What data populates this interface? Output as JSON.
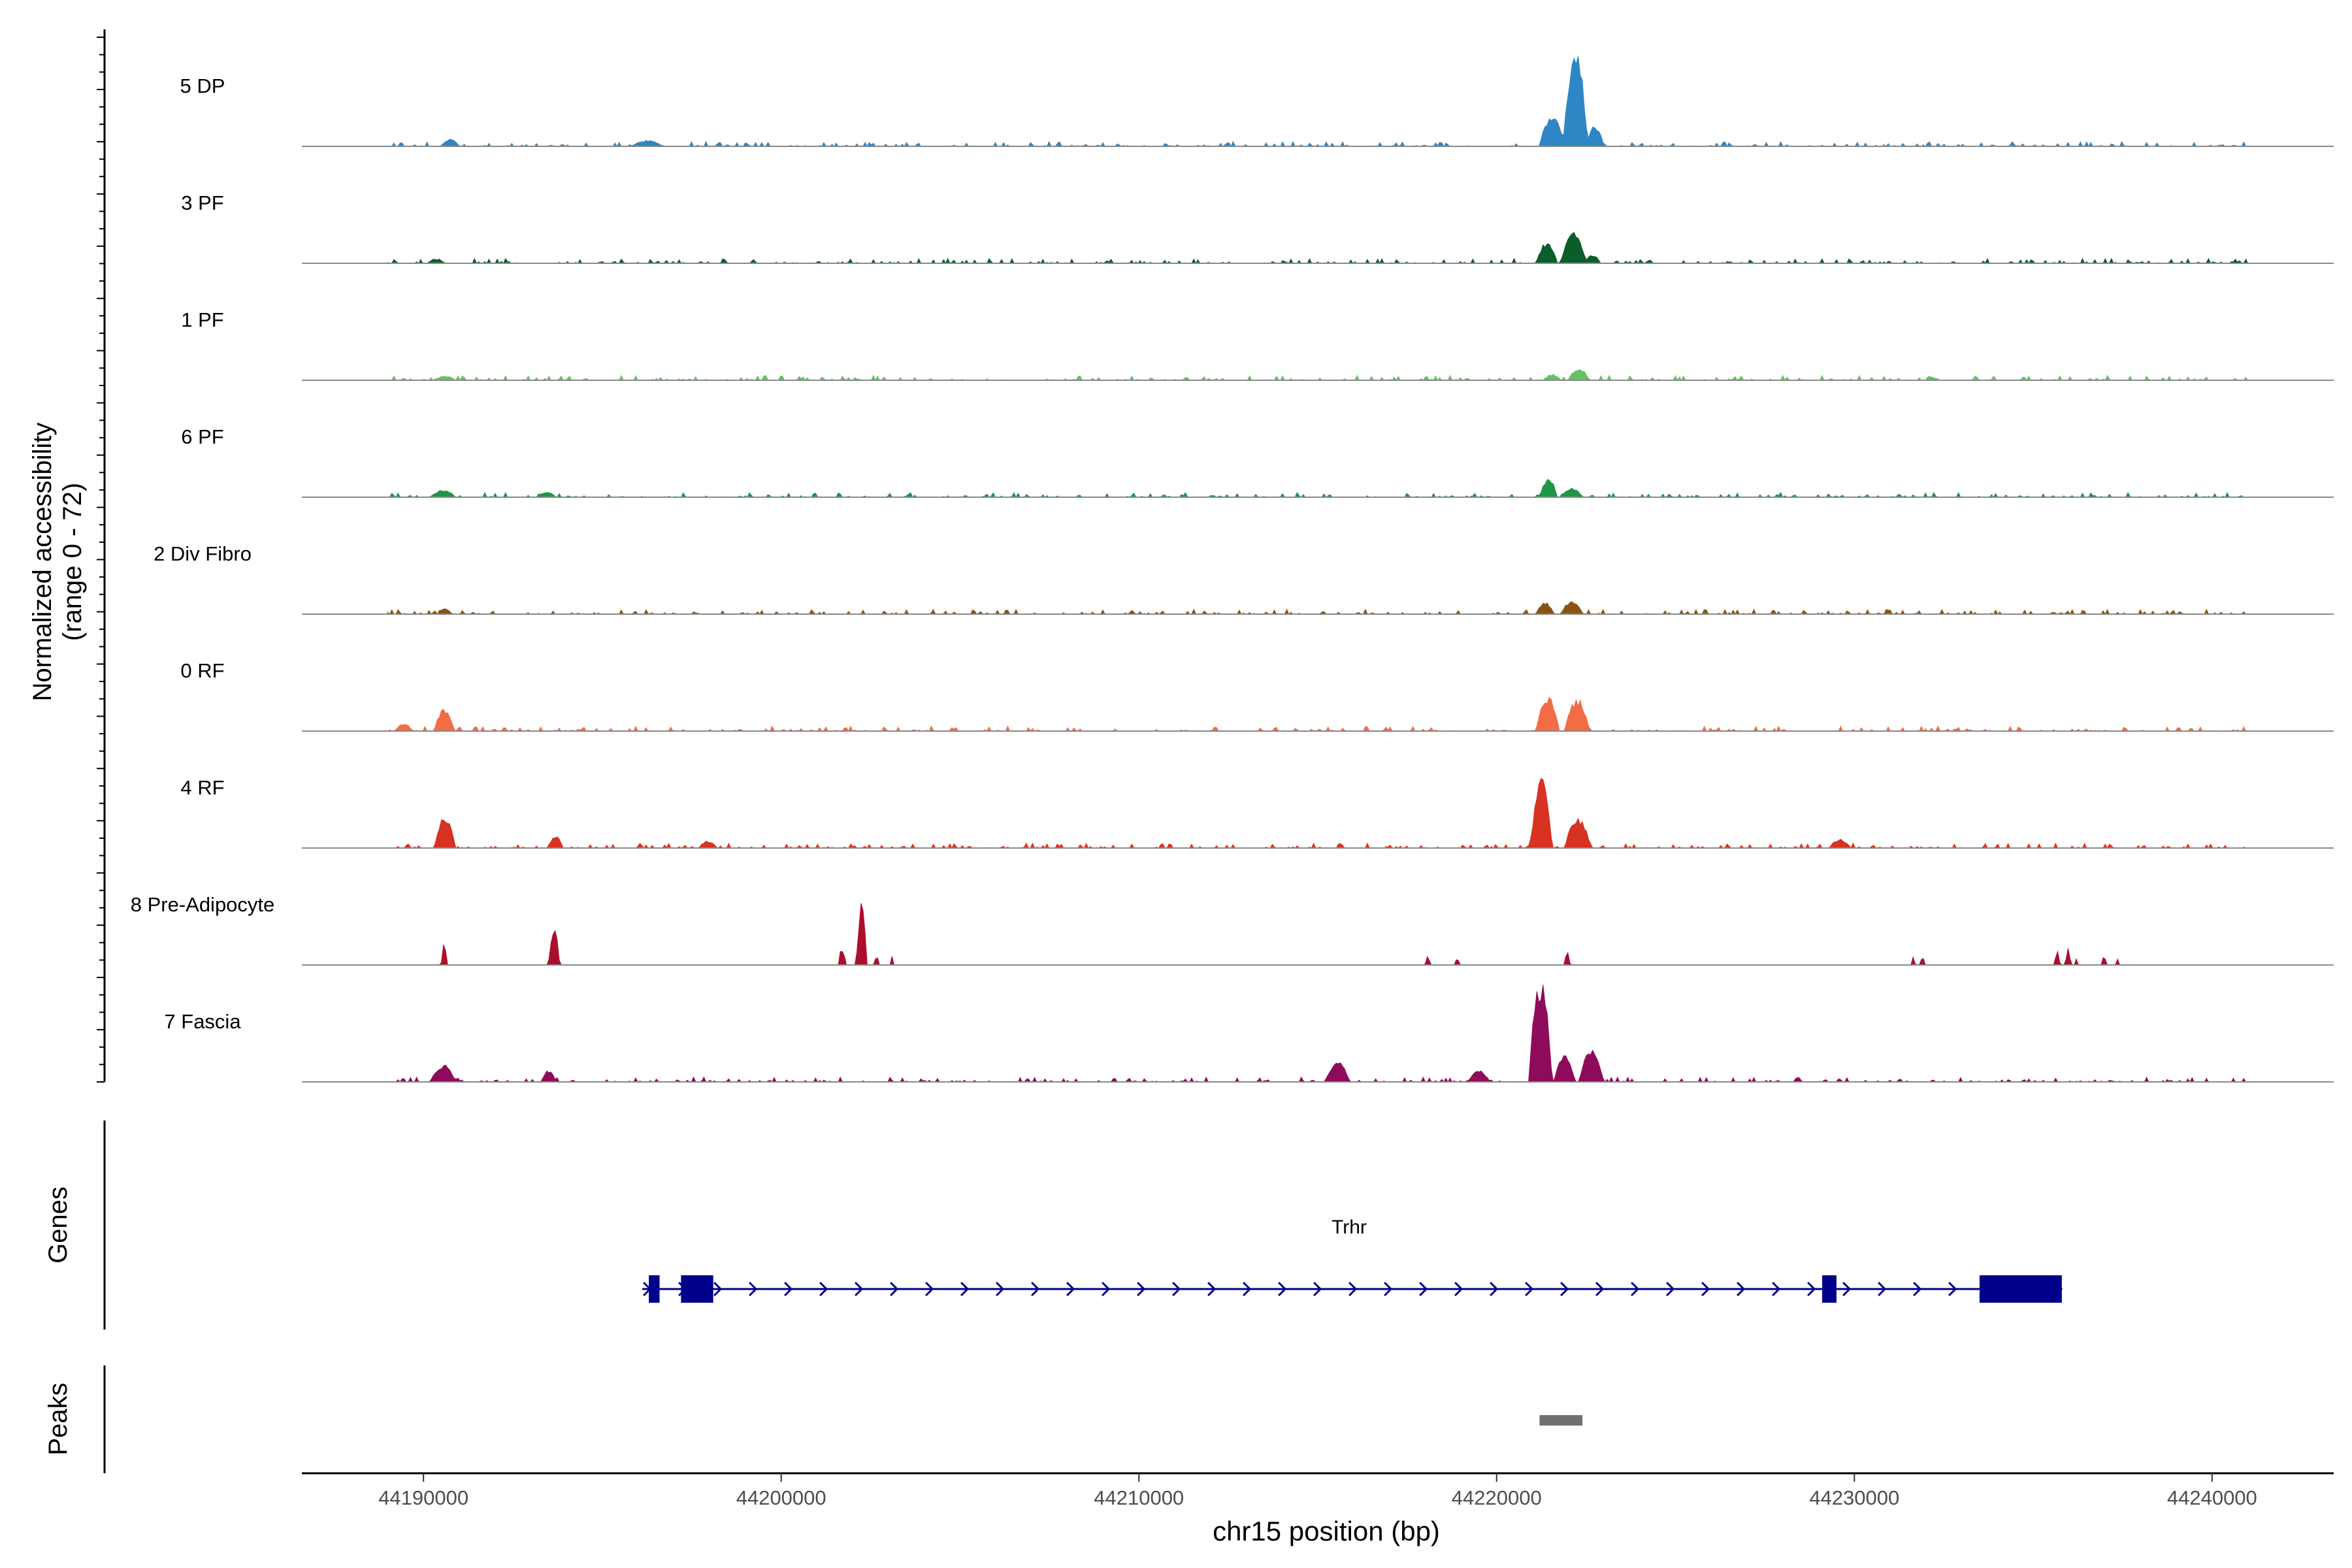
{
  "chart_data": {
    "type": "area",
    "title": "",
    "coverage": {
      "ylabel_line1": "Normalized accessibility",
      "ylabel_line2": "(range 0 - 72)",
      "yrange": [
        0,
        72
      ],
      "tracks": [
        {
          "name": "5 DP",
          "color": "#2F86C4",
          "peaks": [
            [
              44221200,
              44221900,
              22
            ],
            [
              44221850,
              44222550,
              68
            ],
            [
              44222500,
              44223000,
              14
            ],
            [
              44195800,
              44196700,
              4
            ],
            [
              44190500,
              44191000,
              5
            ]
          ]
        },
        {
          "name": "3 PF",
          "color": "#0B5E2A",
          "peaks": [
            [
              44221100,
              44221700,
              14
            ],
            [
              44221800,
              44222500,
              22
            ],
            [
              44222450,
              44222900,
              6
            ],
            [
              44190100,
              44190600,
              3
            ]
          ]
        },
        {
          "name": "1 PF",
          "color": "#66C164",
          "peaks": [
            [
              44221300,
              44221800,
              4
            ],
            [
              44222000,
              44222600,
              8
            ],
            [
              44190300,
              44190900,
              3
            ]
          ]
        },
        {
          "name": "6 PF",
          "color": "#1E9648",
          "peaks": [
            [
              44221200,
              44221700,
              13
            ],
            [
              44221800,
              44222400,
              6
            ],
            [
              44190200,
              44190900,
              5
            ],
            [
              44193200,
              44193700,
              4
            ]
          ]
        },
        {
          "name": "2 Div Fibro",
          "color": "#8B5214",
          "peaks": [
            [
              44221100,
              44221600,
              8
            ],
            [
              44221800,
              44222400,
              9
            ],
            [
              44190400,
              44190800,
              4
            ]
          ]
        },
        {
          "name": "0 RF",
          "color": "#F26C45",
          "peaks": [
            [
              44221100,
              44221750,
              24
            ],
            [
              44221900,
              44222600,
              22
            ],
            [
              44190300,
              44190850,
              15
            ],
            [
              44189200,
              44189700,
              5
            ]
          ]
        },
        {
          "name": "4 RF",
          "color": "#D73222",
          "peaks": [
            [
              44220950,
              44221550,
              52
            ],
            [
              44221900,
              44222650,
              20
            ],
            [
              44190300,
              44190900,
              22
            ],
            [
              44193500,
              44193900,
              9
            ],
            [
              44197700,
              44198200,
              5
            ],
            [
              44229300,
              44229900,
              6
            ]
          ]
        },
        {
          "name": "8 Pre-Adipocyte",
          "color": "#AC0F2E",
          "peaks": [
            [
              44190500,
              44190650,
              15
            ],
            [
              44193500,
              44193800,
              28
            ],
            [
              44201600,
              44201800,
              12
            ],
            [
              44202100,
              44202400,
              42
            ],
            [
              44202600,
              44202750,
              6
            ],
            [
              44203050,
              44203150,
              6
            ],
            [
              44218000,
              44218150,
              6
            ],
            [
              44218850,
              44218950,
              6
            ],
            [
              44221900,
              44222050,
              10
            ],
            [
              44231600,
              44231700,
              7
            ],
            [
              44231850,
              44231950,
              7
            ],
            [
              44235600,
              44235750,
              10
            ],
            [
              44235900,
              44236050,
              12
            ],
            [
              44236150,
              44236250,
              5
            ],
            [
              44236900,
              44237050,
              6
            ],
            [
              44237300,
              44237400,
              5
            ]
          ]
        },
        {
          "name": "7 Fascia",
          "color": "#8E0B5B",
          "peaks": [
            [
              44220900,
              44221550,
              70
            ],
            [
              44221600,
              44222200,
              18
            ],
            [
              44222300,
              44223000,
              22
            ],
            [
              44190200,
              44190900,
              12
            ],
            [
              44193300,
              44193700,
              8
            ],
            [
              44215200,
              44215900,
              14
            ],
            [
              44219200,
              44219800,
              8
            ]
          ]
        }
      ]
    },
    "genes": {
      "label": "Genes",
      "name": "Trhr",
      "strand": "+",
      "start": 44196300,
      "end": 44235800,
      "exons": [
        [
          44196300,
          44196600
        ],
        [
          44197200,
          44198100
        ],
        [
          44229100,
          44229500
        ],
        [
          44233500,
          44235800
        ]
      ],
      "color": "#00008B"
    },
    "peaks_track": {
      "label": "Peaks",
      "regions": [
        [
          44221200,
          44222400
        ]
      ],
      "color": "#707070"
    },
    "xaxis": {
      "label": "chr15 position (bp)",
      "range": [
        44186600,
        44243400
      ],
      "ticks": [
        44190000,
        44200000,
        44210000,
        44220000,
        44230000,
        44240000
      ],
      "tick_labels": [
        "44190000",
        "44200000",
        "44210000",
        "44220000",
        "44230000",
        "44240000"
      ]
    }
  }
}
